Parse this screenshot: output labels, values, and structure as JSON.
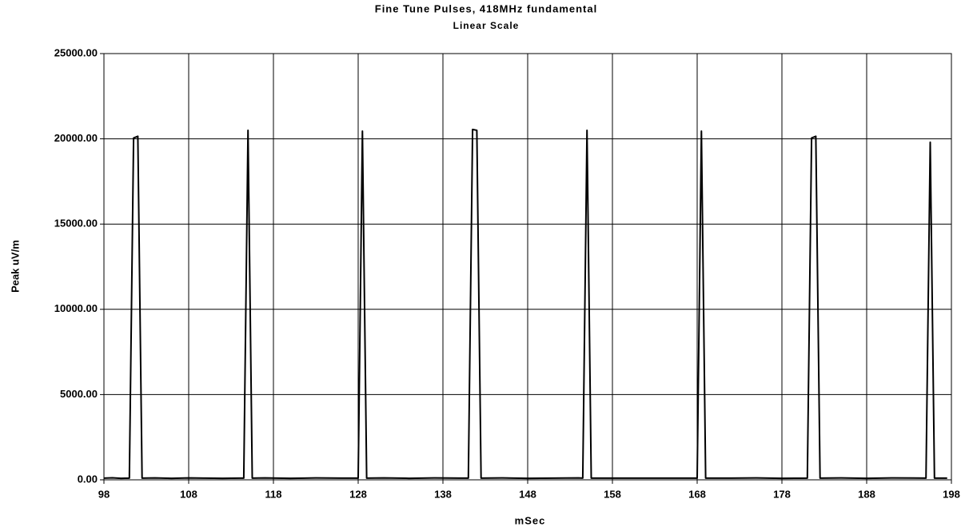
{
  "chart_data": {
    "type": "line",
    "title": "Fine Tune Pulses,  418MHz fundamental",
    "subtitle": "Linear Scale",
    "x_label": "mSec",
    "y_label": "Peak uV/m",
    "x": [
      98,
      99,
      100,
      101,
      101.5,
      102,
      102.5,
      104,
      106,
      108,
      110,
      112,
      114,
      114.5,
      115,
      115.5,
      117,
      120,
      123,
      126,
      128,
      128.5,
      129,
      131,
      134,
      137,
      140,
      141,
      141.5,
      142,
      142.5,
      145,
      148,
      151,
      154,
      154.5,
      155,
      155.5,
      158,
      161,
      164,
      168,
      168.5,
      169,
      172,
      175,
      178,
      181,
      181.5,
      182,
      182.5,
      185,
      188,
      191,
      195,
      195.5,
      196,
      197.5
    ],
    "values": [
      100,
      120,
      90,
      100,
      20050,
      20150,
      100,
      110,
      90,
      110,
      100,
      90,
      100,
      100,
      20500,
      100,
      110,
      90,
      110,
      100,
      100,
      20450,
      100,
      110,
      90,
      110,
      100,
      100,
      20550,
      20500,
      100,
      110,
      90,
      100,
      110,
      100,
      20500,
      100,
      100,
      100,
      100,
      100,
      20450,
      100,
      100,
      110,
      90,
      100,
      20050,
      20150,
      100,
      110,
      90,
      110,
      100,
      19800,
      100,
      100
    ],
    "color": "#000000",
    "xlim": [
      98,
      198
    ],
    "xticks": [
      98,
      108,
      118,
      128,
      138,
      148,
      158,
      168,
      178,
      188,
      198
    ],
    "ylim": [
      0,
      25000
    ],
    "yticks": [
      {
        "value": 0,
        "label": "0.00"
      },
      {
        "value": 5000,
        "label": "5000.00"
      },
      {
        "value": 10000,
        "label": "10000.00"
      },
      {
        "value": 15000,
        "label": "15000.00"
      },
      {
        "value": 20000,
        "label": "20000.00"
      },
      {
        "value": 25000,
        "label": "25000.00"
      }
    ],
    "grid": true
  }
}
